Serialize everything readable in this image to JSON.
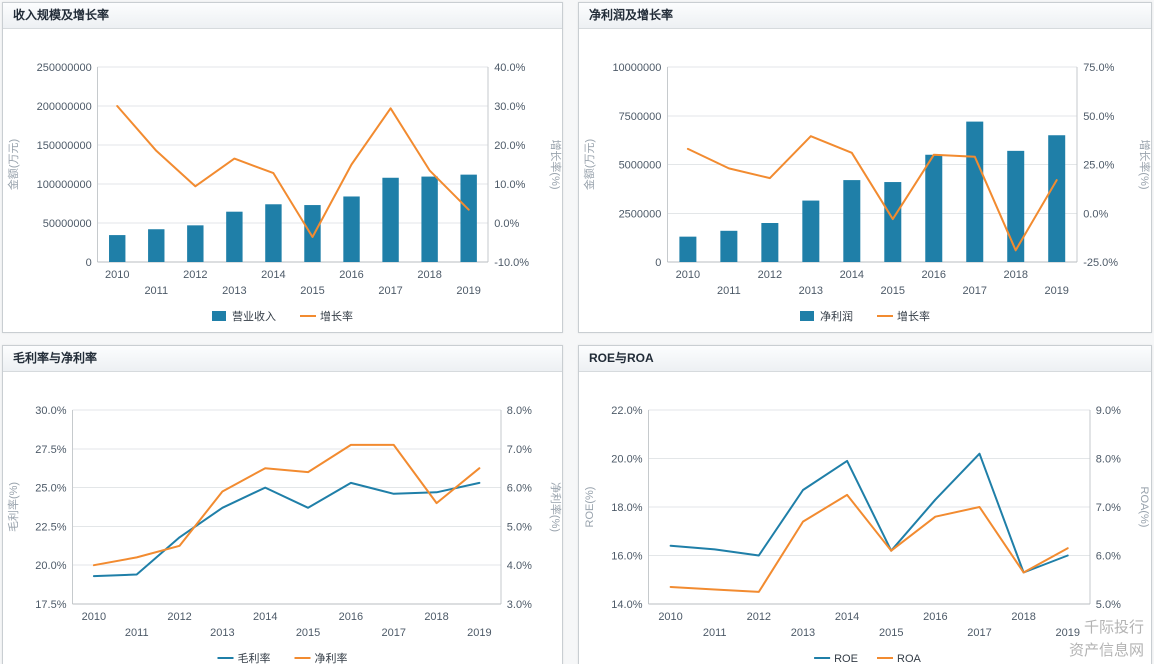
{
  "watermark": {
    "line1": "千际投行",
    "line2": "资产信息网"
  },
  "chart_data": [
    {
      "type": "bar",
      "title": "收入规模及增长率",
      "categories": [
        "2010",
        "2011",
        "2012",
        "2013",
        "2014",
        "2015",
        "2016",
        "2017",
        "2018",
        "2019"
      ],
      "axes": {
        "left": {
          "title": "金额(万元)",
          "min": 0,
          "max": 250000000,
          "step": 50000000,
          "format": "number"
        },
        "right": {
          "title": "增长率(%)",
          "min": -10,
          "max": 40,
          "step": 10,
          "format": "percent1"
        }
      },
      "grid": true,
      "legend_position": "bottom",
      "series": [
        {
          "name": "营业收入",
          "type": "bar",
          "axis": "left",
          "color": "#1f7fa8",
          "values": [
            34500000,
            42000000,
            47000000,
            64500000,
            74000000,
            73000000,
            84000000,
            108000000,
            109500000,
            112000000
          ]
        },
        {
          "name": "增长率",
          "type": "line",
          "axis": "right",
          "color": "#f28b30",
          "values": [
            30.0,
            18.5,
            9.4,
            16.5,
            12.8,
            -3.6,
            15.0,
            29.4,
            13.5,
            3.4
          ]
        }
      ]
    },
    {
      "type": "bar",
      "title": "净利润及增长率",
      "categories": [
        "2010",
        "2011",
        "2012",
        "2013",
        "2014",
        "2015",
        "2016",
        "2017",
        "2018",
        "2019"
      ],
      "axes": {
        "left": {
          "title": "金额(万元)",
          "min": 0,
          "max": 10000000,
          "step": 2500000,
          "format": "number"
        },
        "right": {
          "title": "增长率(%)",
          "min": -25,
          "max": 75,
          "step": 25,
          "format": "percent1"
        }
      },
      "grid": true,
      "legend_position": "bottom",
      "series": [
        {
          "name": "净利润",
          "type": "bar",
          "axis": "left",
          "color": "#1f7fa8",
          "values": [
            1300000,
            1600000,
            2000000,
            3150000,
            4200000,
            4100000,
            5500000,
            7200000,
            5700000,
            6500000
          ]
        },
        {
          "name": "增长率",
          "type": "line",
          "axis": "right",
          "color": "#f28b30",
          "values": [
            33.0,
            23.0,
            18.0,
            39.5,
            31.0,
            -3.0,
            30.0,
            29.0,
            -19.0,
            17.0
          ]
        }
      ]
    },
    {
      "type": "line",
      "title": "毛利率与净利率",
      "categories": [
        "2010",
        "2011",
        "2012",
        "2013",
        "2014",
        "2015",
        "2016",
        "2017",
        "2018",
        "2019"
      ],
      "axes": {
        "left": {
          "title": "毛利率(%)",
          "min": 17.5,
          "max": 30.0,
          "step": 2.5,
          "format": "percent1"
        },
        "right": {
          "title": "净利率(%)",
          "min": 3.0,
          "max": 8.0,
          "step": 1.0,
          "format": "percent1"
        }
      },
      "grid": true,
      "legend_position": "bottom",
      "series": [
        {
          "name": "毛利率",
          "type": "line",
          "axis": "left",
          "color": "#1f7fa8",
          "values": [
            19.3,
            19.4,
            21.8,
            23.7,
            25.0,
            23.7,
            25.3,
            24.6,
            24.7,
            25.3
          ]
        },
        {
          "name": "净利率",
          "type": "line",
          "axis": "right",
          "color": "#f28b30",
          "values": [
            4.0,
            4.2,
            4.5,
            5.9,
            6.5,
            6.4,
            7.1,
            7.1,
            5.6,
            6.5
          ]
        }
      ]
    },
    {
      "type": "line",
      "title": "ROE与ROA",
      "categories": [
        "2010",
        "2011",
        "2012",
        "2013",
        "2014",
        "2015",
        "2016",
        "2017",
        "2018",
        "2019"
      ],
      "axes": {
        "left": {
          "title": "ROE(%)",
          "min": 14.0,
          "max": 22.0,
          "step": 2.0,
          "format": "percent1"
        },
        "right": {
          "title": "ROA(%)",
          "min": 5.0,
          "max": 9.0,
          "step": 1.0,
          "format": "percent1"
        }
      },
      "grid": true,
      "legend_position": "bottom",
      "series": [
        {
          "name": "ROE",
          "type": "line",
          "axis": "left",
          "color": "#1f7fa8",
          "values": [
            16.4,
            16.25,
            16.0,
            18.7,
            19.9,
            16.2,
            18.3,
            20.2,
            15.3,
            16.0
          ]
        },
        {
          "name": "ROA",
          "type": "line",
          "axis": "right",
          "color": "#f28b30",
          "values": [
            5.35,
            5.3,
            5.25,
            6.7,
            7.25,
            6.1,
            6.8,
            7.0,
            5.65,
            6.15
          ]
        }
      ]
    }
  ]
}
